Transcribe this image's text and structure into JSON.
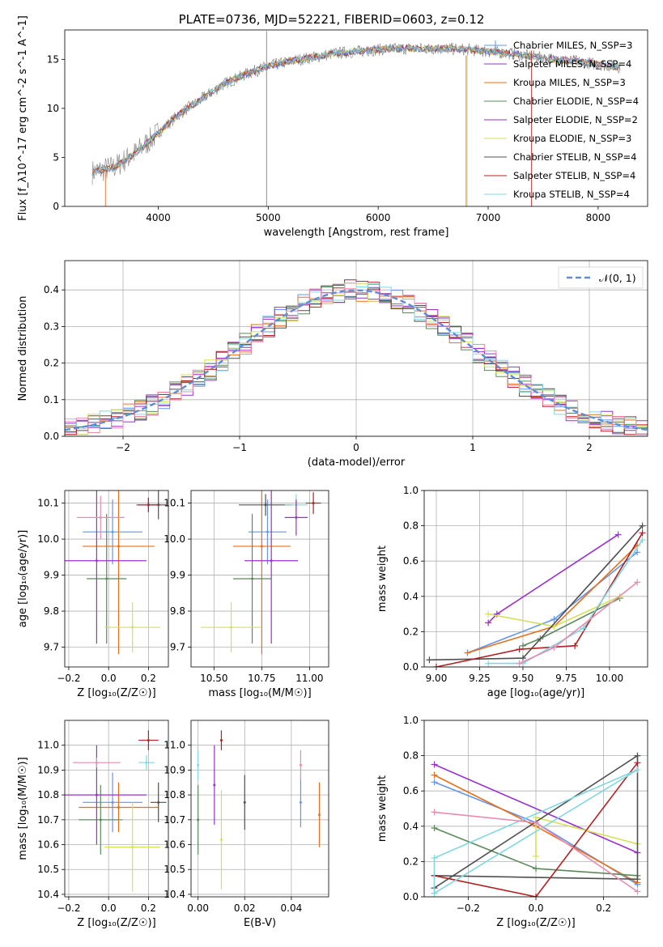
{
  "figure_title": "PLATE=0736, MJD=52221, FIBERID=0603, z=0.12",
  "colors": {
    "chabrier_miles": "#6495ED",
    "salpeter_miles": "#9932CC",
    "kroupa_miles": "#E8701A",
    "chabrier_elodie": "#5C8A5C",
    "salpeter_elodie": "#9932CC",
    "kroupa_elodie": "#D4E157",
    "chabrier_stelib": "#505050",
    "salpeter_stelib": "#B22222",
    "kroupa_stelib": "#80D8E0",
    "normal_curve": "#5B8DD9",
    "grid": "#b0b0b0"
  },
  "chart_data": [
    {
      "id": "spectrum",
      "type": "line",
      "title": "PLATE=0736, MJD=52221, FIBERID=0603, z=0.12",
      "xlabel": "wavelength [Angstrom, rest frame]",
      "ylabel": "Flux [f_λ10^-17 erg cm^-2 s^-1 A^-1]",
      "xlim": [
        3150,
        8450
      ],
      "ylim": [
        0,
        18
      ],
      "xticks": [
        "4000",
        "5000",
        "6000",
        "7000",
        "8000"
      ],
      "yticks": [
        "0",
        "5",
        "10",
        "15"
      ],
      "grid": false,
      "legend_position": "right",
      "legend": [
        "Chabrier MILES, N_SSP=3",
        "Salpeter MILES, N_SSP=4",
        "Kroupa MILES, N_SSP=3",
        "Chabrier ELODIE, N_SSP=4",
        "Salpeter ELODIE, N_SSP=2",
        "Kroupa ELODIE, N_SSP=3",
        "Chabrier STELIB, N_SSP=4",
        "Salpeter STELIB, N_SSP=4",
        "Kroupa STELIB, N_SSP=4"
      ],
      "continuum_x": [
        3400,
        3600,
        3800,
        4000,
        4200,
        4400,
        4600,
        4800,
        5000,
        5200,
        5400,
        5600,
        5800,
        6000,
        6200,
        6400,
        6600,
        6800,
        7000,
        7200,
        7400,
        7600,
        7800,
        8000,
        8200
      ],
      "continuum_y": [
        3.5,
        4.0,
        5.5,
        7.5,
        9.5,
        11.0,
        12.5,
        13.5,
        14.3,
        14.8,
        15.2,
        15.6,
        15.8,
        16.0,
        16.1,
        16.1,
        16.1,
        16.0,
        15.8,
        15.6,
        15.3,
        15.0,
        14.8,
        14.5,
        14.2
      ]
    },
    {
      "id": "residuals",
      "type": "histogram",
      "xlabel": "(data-model)/error",
      "ylabel": "Normed distribution",
      "xlim": [
        -2.5,
        2.5
      ],
      "ylim": [
        0,
        0.48
      ],
      "xticks": [
        "−2",
        "−1",
        "0",
        "1",
        "2"
      ],
      "yticks": [
        "0.0",
        "0.1",
        "0.2",
        "0.3",
        "0.4"
      ],
      "grid": true,
      "legend": [
        "𝒩(0, 1)"
      ],
      "legend_position": "top-right",
      "bin_width": 0.1
    },
    {
      "id": "age_vs_Z",
      "type": "errorbar",
      "xlabel": "Z [log₁₀(Z/Z☉)]",
      "ylabel": "age  [log₁₀(age/yr)]",
      "xlim": [
        -0.22,
        0.3
      ],
      "ylim": [
        9.645,
        10.135
      ],
      "xticks": [
        "−0.2",
        "0.0",
        "0.2"
      ],
      "yticks": [
        "9.7",
        "9.8",
        "9.9",
        "10.0",
        "10.1"
      ],
      "grid": true,
      "points": [
        {
          "x": 0.02,
          "xerr": 0.15,
          "y": 10.02,
          "yerr": 0.09,
          "c": "chabrier_miles"
        },
        {
          "x": 0.2,
          "xerr": 0.05,
          "y": 10.095,
          "yerr": 0.02,
          "c": "salpeter_miles"
        },
        {
          "x": 0.05,
          "xerr": 0.18,
          "y": 9.98,
          "yerr": 0.3,
          "c": "kroupa_miles"
        },
        {
          "x": -0.01,
          "xerr": 0.1,
          "y": 9.89,
          "yerr": 0.18,
          "c": "chabrier_elodie"
        },
        {
          "x": -0.06,
          "xerr": 0.25,
          "y": 9.94,
          "yerr": 0.23,
          "c": "salpeter_elodie"
        },
        {
          "x": 0.12,
          "xerr": 0.14,
          "y": 9.755,
          "yerr": 0.07,
          "c": "kroupa_elodie"
        },
        {
          "x": 0.25,
          "xerr": 0.04,
          "y": 10.095,
          "yerr": 0.04,
          "c": "chabrier_stelib"
        },
        {
          "x": 0.2,
          "xerr": 0.06,
          "y": 10.095,
          "yerr": 0.02,
          "c": "salpeter_stelib"
        },
        {
          "x": -0.04,
          "xerr": 0.12,
          "y": 10.06,
          "yerr": 0.06,
          "c": "salpeter_miles_alt"
        }
      ]
    },
    {
      "id": "age_vs_mass",
      "type": "errorbar",
      "xlabel": "mass [log₁₀(M/M☉)]",
      "ylabel": "",
      "xlim": [
        10.38,
        11.1
      ],
      "ylim": [
        9.645,
        10.135
      ],
      "xticks": [
        "10.50",
        "10.75",
        "11.00"
      ],
      "yticks": [
        "9.7",
        "9.8",
        "9.9",
        "10.0",
        "10.1"
      ],
      "grid": true,
      "points": [
        {
          "x": 10.78,
          "xerr": 0.1,
          "y": 10.02,
          "yerr": 0.09,
          "c": "chabrier_miles"
        },
        {
          "x": 11.02,
          "xerr": 0.04,
          "y": 10.1,
          "yerr": 0.03,
          "c": "salpeter_stelib"
        },
        {
          "x": 10.75,
          "xerr": 0.15,
          "y": 9.98,
          "yerr": 0.3,
          "c": "kroupa_miles"
        },
        {
          "x": 10.7,
          "xerr": 0.1,
          "y": 9.89,
          "yerr": 0.18,
          "c": "chabrier_elodie"
        },
        {
          "x": 10.8,
          "xerr": 0.14,
          "y": 9.94,
          "yerr": 0.23,
          "c": "salpeter_elodie"
        },
        {
          "x": 10.59,
          "xerr": 0.16,
          "y": 9.755,
          "yerr": 0.07,
          "c": "kroupa_elodie"
        },
        {
          "x": 10.77,
          "xerr": 0.14,
          "y": 10.095,
          "yerr": 0.03,
          "c": "chabrier_stelib"
        },
        {
          "x": 10.93,
          "xerr": 0.06,
          "y": 10.095,
          "yerr": 0.03,
          "c": "kroupa_stelib"
        },
        {
          "x": 10.93,
          "xerr": 0.06,
          "y": 10.06,
          "yerr": 0.05,
          "c": "salpeter_miles"
        }
      ]
    },
    {
      "id": "massweight_vs_age",
      "type": "line",
      "xlabel": "age  [log₁₀(age/yr)]",
      "ylabel": "mass weight",
      "xlim": [
        8.93,
        10.22
      ],
      "ylim": [
        0,
        1
      ],
      "xticks": [
        "9.00",
        "9.25",
        "9.50",
        "9.75",
        "10.00"
      ],
      "yticks": [
        "0.0",
        "0.2",
        "0.4",
        "0.6",
        "0.8",
        "1.0"
      ],
      "grid": true,
      "series": [
        {
          "c": "chabrier_miles",
          "x": [
            9.18,
            9.68,
            10.16
          ],
          "y": [
            0.08,
            0.27,
            0.65
          ]
        },
        {
          "c": "salpeter_miles",
          "x": [
            9.3,
            9.35,
            10.05
          ],
          "y": [
            0.25,
            0.3,
            0.75
          ]
        },
        {
          "c": "kroupa_miles",
          "x": [
            9.18,
            9.68,
            10.16
          ],
          "y": [
            0.08,
            0.23,
            0.69
          ]
        },
        {
          "c": "chabrier_elodie",
          "x": [
            9.5,
            9.6,
            10.06
          ],
          "y": [
            0.12,
            0.16,
            0.39
          ]
        },
        {
          "c": "kroupa_elodie",
          "x": [
            9.3,
            9.68,
            10.06
          ],
          "y": [
            0.3,
            0.23,
            0.4
          ]
        },
        {
          "c": "chabrier_stelib",
          "x": [
            8.96,
            9.5,
            10.19
          ],
          "y": [
            0.04,
            0.05,
            0.8
          ]
        },
        {
          "c": "salpeter_stelib",
          "x": [
            9.0,
            9.48,
            9.8,
            10.19
          ],
          "y": [
            0.0,
            0.1,
            0.12,
            0.76
          ]
        },
        {
          "c": "kroupa_stelib",
          "x": [
            9.3,
            9.5,
            9.85,
            10.19
          ],
          "y": [
            0.02,
            0.02,
            0.22,
            0.72
          ]
        },
        {
          "c": "salpeter_miles_alt",
          "x": [
            9.48,
            9.68,
            10.16
          ],
          "y": [
            0.02,
            0.11,
            0.48
          ]
        }
      ]
    },
    {
      "id": "mass_vs_Z",
      "type": "errorbar",
      "xlabel": "Z [log₁₀(Z/Z☉)]",
      "ylabel": "mass [log₁₀(M/M☉)]",
      "xlim": [
        -0.22,
        0.3
      ],
      "ylim": [
        10.39,
        11.1
      ],
      "xticks": [
        "−0.2",
        "0.0",
        "0.2"
      ],
      "yticks": [
        "10.4",
        "10.5",
        "10.6",
        "10.7",
        "10.8",
        "10.9",
        "11.0"
      ],
      "grid": true,
      "points": [
        {
          "x": 0.02,
          "xerr": 0.15,
          "y": 10.77,
          "yerr": 0.12,
          "c": "chabrier_miles"
        },
        {
          "x": 0.2,
          "xerr": 0.05,
          "y": 11.02,
          "yerr": 0.04,
          "c": "salpeter_stelib"
        },
        {
          "x": 0.05,
          "xerr": 0.2,
          "y": 10.75,
          "yerr": 0.1,
          "c": "kroupa_miles"
        },
        {
          "x": -0.04,
          "xerr": 0.11,
          "y": 10.7,
          "yerr": 0.14,
          "c": "chabrier_elodie"
        },
        {
          "x": -0.06,
          "xerr": 0.25,
          "y": 10.8,
          "yerr": 0.2,
          "c": "salpeter_elodie"
        },
        {
          "x": 0.12,
          "xerr": 0.14,
          "y": 10.59,
          "yerr": 0.18,
          "c": "kroupa_elodie"
        },
        {
          "x": 0.25,
          "xerr": 0.04,
          "y": 10.77,
          "yerr": 0.08,
          "c": "chabrier_stelib"
        },
        {
          "x": 0.19,
          "xerr": 0.04,
          "y": 10.93,
          "yerr": 0.03,
          "c": "kroupa_stelib"
        },
        {
          "x": -0.06,
          "xerr": 0.12,
          "y": 10.93,
          "yerr": 0.02,
          "c": "salpeter_miles_alt"
        }
      ]
    },
    {
      "id": "mass_vs_ebv",
      "type": "errorbar",
      "xlabel": "E(B-V)",
      "ylabel": "",
      "xlim": [
        -0.003,
        0.056
      ],
      "ylim": [
        10.39,
        11.1
      ],
      "xticks": [
        "0.00",
        "0.02",
        "0.04"
      ],
      "yticks": [
        "10.4",
        "10.5",
        "10.6",
        "10.7",
        "10.8",
        "10.9",
        "11.0"
      ],
      "grid": true,
      "points": [
        {
          "x": 0.044,
          "xerr": 0,
          "y": 10.77,
          "yerr": 0.1,
          "c": "chabrier_miles"
        },
        {
          "x": 0.01,
          "xerr": 0,
          "y": 11.02,
          "yerr": 0.04,
          "c": "salpeter_stelib"
        },
        {
          "x": 0.052,
          "xerr": 0,
          "y": 10.72,
          "yerr": 0.13,
          "c": "kroupa_miles"
        },
        {
          "x": 0.0,
          "xerr": 0,
          "y": 10.7,
          "yerr": 0.14,
          "c": "chabrier_elodie"
        },
        {
          "x": 0.007,
          "xerr": 0,
          "y": 10.84,
          "yerr": 0.16,
          "c": "salpeter_elodie"
        },
        {
          "x": 0.01,
          "xerr": 0,
          "y": 10.62,
          "yerr": 0.2,
          "c": "kroupa_elodie"
        },
        {
          "x": 0.02,
          "xerr": 0,
          "y": 10.77,
          "yerr": 0.11,
          "c": "chabrier_stelib"
        },
        {
          "x": 0.0,
          "xerr": 0,
          "y": 10.92,
          "yerr": 0.06,
          "c": "kroupa_stelib"
        },
        {
          "x": 0.044,
          "xerr": 0,
          "y": 10.92,
          "yerr": 0.06,
          "c": "salpeter_miles_alt"
        }
      ]
    },
    {
      "id": "massweight_vs_Z",
      "type": "line",
      "xlabel": "Z [log₁₀(Z/Z☉)]",
      "ylabel": "mass weight",
      "xlim": [
        -0.33,
        0.33
      ],
      "ylim": [
        0,
        1
      ],
      "xticks": [
        "−0.2",
        "0.0",
        "0.2"
      ],
      "yticks": [
        "0.0",
        "0.2",
        "0.4",
        "0.6",
        "0.8",
        "1.0"
      ],
      "grid": true,
      "series": [
        {
          "c": "chabrier_miles",
          "x": [
            -0.3,
            0.0,
            0.3
          ],
          "y": [
            0.65,
            0.42,
            0.07
          ]
        },
        {
          "c": "salpeter_miles",
          "x": [
            -0.3,
            0.3
          ],
          "y": [
            0.75,
            0.25
          ]
        },
        {
          "c": "kroupa_miles",
          "x": [
            -0.3,
            0.0,
            0.3
          ],
          "y": [
            0.69,
            0.4,
            0.08
          ]
        },
        {
          "c": "chabrier_elodie",
          "x": [
            -0.3,
            0.0,
            0.3
          ],
          "y": [
            0.39,
            0.16,
            0.12
          ]
        },
        {
          "c": "kroupa_elodie",
          "x": [
            0.0,
            0.0,
            0.3
          ],
          "y": [
            0.23,
            0.45,
            0.3
          ]
        },
        {
          "c": "chabrier_stelib",
          "x": [
            -0.3,
            0.3,
            0.3,
            -0.3
          ],
          "y": [
            0.05,
            0.8,
            0.1,
            0.12
          ]
        },
        {
          "c": "salpeter_stelib",
          "x": [
            -0.3,
            0.0,
            0.3
          ],
          "y": [
            0.12,
            0.0,
            0.76
          ]
        },
        {
          "c": "kroupa_stelib",
          "x": [
            -0.3,
            0.3,
            -0.3,
            -0.3
          ],
          "y": [
            0.02,
            0.72,
            0.22,
            0.02
          ]
        },
        {
          "c": "salpeter_miles_alt",
          "x": [
            -0.3,
            0.0,
            0.3
          ],
          "y": [
            0.48,
            0.42,
            0.03
          ]
        }
      ]
    }
  ]
}
